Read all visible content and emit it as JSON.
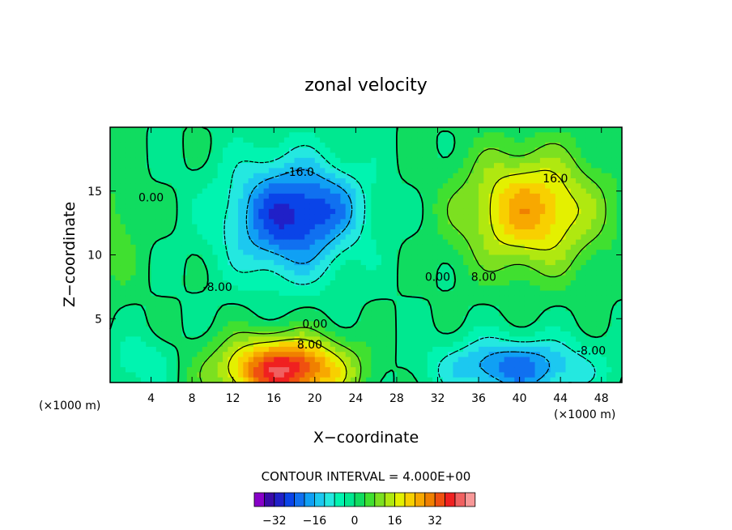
{
  "chart_data": {
    "type": "contour",
    "title": "zonal velocity",
    "xlabel": "X−coordinate",
    "ylabel": "Z−coordinate",
    "x_unit_left": "(×1000 m)",
    "x_unit_right": "(×1000 m)",
    "xlim": [
      0,
      50
    ],
    "ylim": [
      0,
      20
    ],
    "x_ticks": [
      4,
      8,
      12,
      16,
      20,
      24,
      28,
      32,
      36,
      40,
      44,
      48
    ],
    "y_ticks": [
      5,
      10,
      15
    ],
    "contour_interval_text": "CONTOUR INTERVAL = 4.000E+00",
    "contour_labels": [
      {
        "text": "-16.0",
        "x": 18.5,
        "y": 16.5
      },
      {
        "text": "16.0",
        "x": 43.5,
        "y": 16.0
      },
      {
        "text": "0.00",
        "x": 4.0,
        "y": 14.5
      },
      {
        "text": "-8.00",
        "x": 10.5,
        "y": 7.5
      },
      {
        "text": "0.00",
        "x": 32.0,
        "y": 8.3
      },
      {
        "text": "8.00",
        "x": 36.5,
        "y": 8.3
      },
      {
        "text": "0.00",
        "x": 20.0,
        "y": 4.6
      },
      {
        "text": "8.00",
        "x": 19.5,
        "y": 3.0
      },
      {
        "text": "-8.00",
        "x": 47.0,
        "y": 2.5
      }
    ],
    "features": [
      {
        "name": "negative-core-upper-left",
        "cx": 17.5,
        "cy": 13.0,
        "sx": 6.0,
        "sy": 4.5,
        "amp": -28
      },
      {
        "name": "negative-arm",
        "cx": 22.0,
        "cy": 14.0,
        "sx": 3.5,
        "sy": 2.5,
        "amp": -6
      },
      {
        "name": "positive-core-upper-right",
        "cx": 41.0,
        "cy": 13.5,
        "sx": 6.5,
        "sy": 4.5,
        "amp": 26
      },
      {
        "name": "positive-core-bottom",
        "cx": 17.0,
        "cy": 1.0,
        "sx": 6.0,
        "sy": 2.5,
        "amp": 40
      },
      {
        "name": "negative-core-bottom-right",
        "cx": 39.5,
        "cy": 1.2,
        "sx": 7.0,
        "sy": 2.2,
        "amp": -22
      },
      {
        "name": "weak-negative-bottom-left",
        "cx": 3.0,
        "cy": 1.5,
        "sx": 3.0,
        "sy": 2.0,
        "amp": -8
      },
      {
        "name": "weak-positive-left-edge",
        "cx": 0.5,
        "cy": 12.0,
        "sx": 2.5,
        "sy": 5.0,
        "amp": 6
      }
    ],
    "colorbar": {
      "levels_min": -40,
      "levels_max": 48,
      "interval": 4,
      "tick_values": [
        -32,
        -16,
        0,
        16,
        32
      ],
      "tick_labels": [
        "−32",
        "−16",
        "0",
        "16",
        "32"
      ],
      "colors": [
        "#8800c8",
        "#3a0aa8",
        "#2020c8",
        "#0a44e8",
        "#1070f0",
        "#10a0f4",
        "#1cc8f0",
        "#24e8e0",
        "#00f4b0",
        "#00e890",
        "#10dc60",
        "#40e030",
        "#7ce020",
        "#b0e810",
        "#e4f000",
        "#f8d000",
        "#f8a800",
        "#f08000",
        "#f05010",
        "#f02020",
        "#f06060",
        "#f89898"
      ]
    }
  }
}
